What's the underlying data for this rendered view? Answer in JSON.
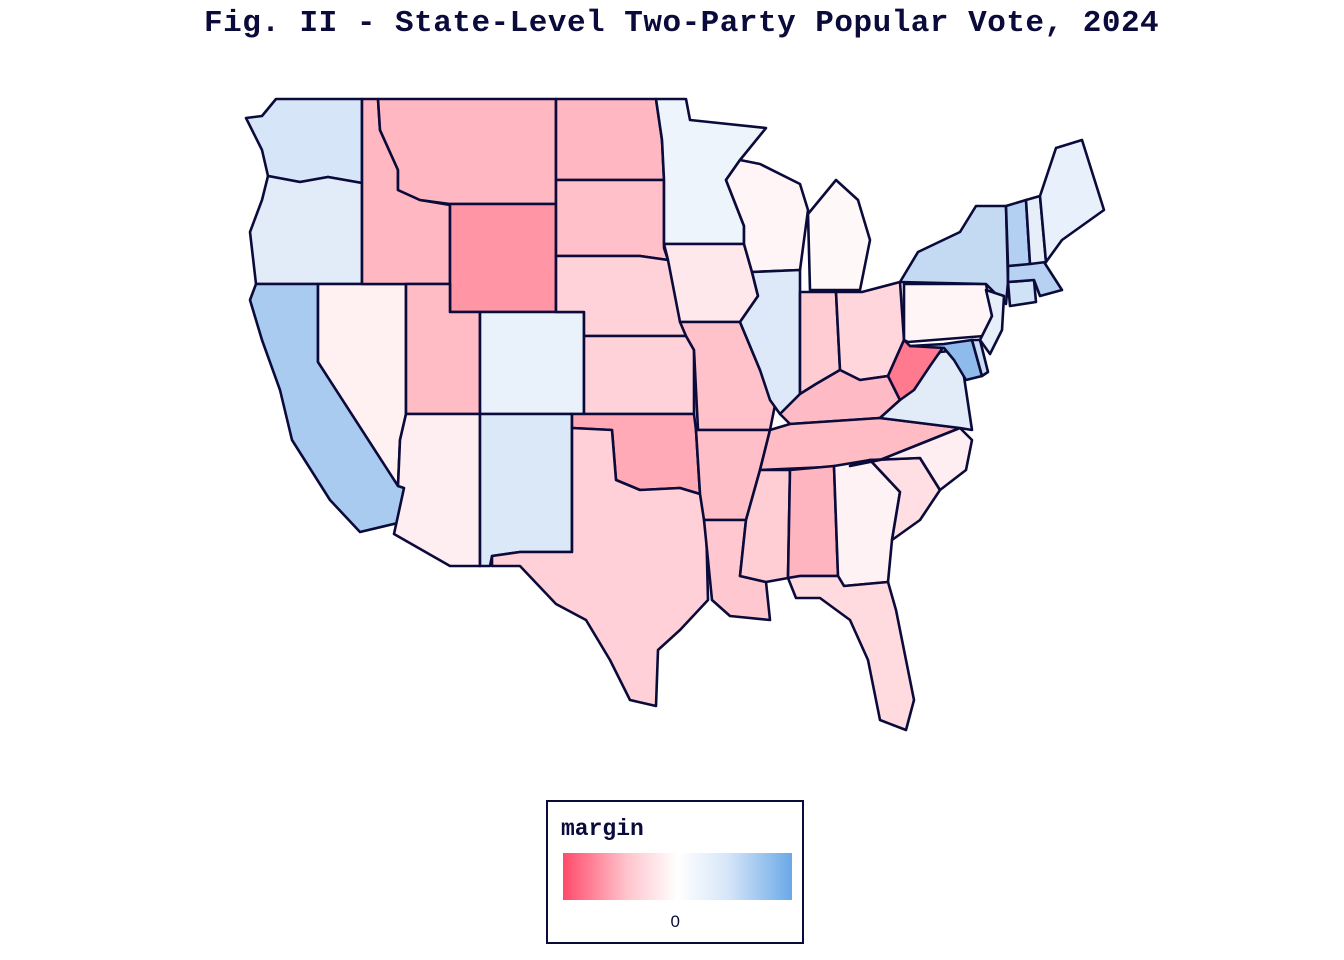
{
  "title": "Fig. II - State-Level Two-Party Popular Vote, 2024",
  "legend": {
    "title": "margin",
    "zero_label": "0"
  },
  "colors": {
    "border": "#0b0b3b",
    "scale_negative": "#ff4a6a",
    "scale_mid": "#ffffff",
    "scale_positive": "#6aa9e8"
  },
  "states": [
    {
      "name": "WA",
      "fill": "#d6e6f8"
    },
    {
      "name": "OR",
      "fill": "#e2ecf9"
    },
    {
      "name": "CA",
      "fill": "#a9cbef"
    },
    {
      "name": "NV",
      "fill": "#fff0f2"
    },
    {
      "name": "ID",
      "fill": "#ffb8c2"
    },
    {
      "name": "MT",
      "fill": "#ffb8c2"
    },
    {
      "name": "WY",
      "fill": "#ff95a5"
    },
    {
      "name": "UT",
      "fill": "#ffbcc5"
    },
    {
      "name": "AZ",
      "fill": "#ffeef1"
    },
    {
      "name": "CO",
      "fill": "#e9f1fb"
    },
    {
      "name": "NM",
      "fill": "#dbe8f8"
    },
    {
      "name": "ND",
      "fill": "#ffb8c2"
    },
    {
      "name": "SD",
      "fill": "#ffc0c9"
    },
    {
      "name": "NE",
      "fill": "#ffd2d9"
    },
    {
      "name": "KS",
      "fill": "#ffd2d9"
    },
    {
      "name": "OK",
      "fill": "#ffaab6"
    },
    {
      "name": "TX",
      "fill": "#ffd0d7"
    },
    {
      "name": "MN",
      "fill": "#eef4fc"
    },
    {
      "name": "IA",
      "fill": "#ffe8ec"
    },
    {
      "name": "MO",
      "fill": "#ffc2cb"
    },
    {
      "name": "AR",
      "fill": "#ffbfc8"
    },
    {
      "name": "LA",
      "fill": "#ffc8d0"
    },
    {
      "name": "WI",
      "fill": "#fff5f6"
    },
    {
      "name": "IL",
      "fill": "#dde9f8"
    },
    {
      "name": "MI",
      "fill": "#fff8f8"
    },
    {
      "name": "IN",
      "fill": "#ffccd3"
    },
    {
      "name": "OH",
      "fill": "#ffd6dc"
    },
    {
      "name": "KY",
      "fill": "#ffbbc5"
    },
    {
      "name": "TN",
      "fill": "#ffbcc5"
    },
    {
      "name": "MS",
      "fill": "#ffcdd4"
    },
    {
      "name": "AL",
      "fill": "#ffb5c0"
    },
    {
      "name": "GA",
      "fill": "#fff2f4"
    },
    {
      "name": "FL",
      "fill": "#ffdbe0"
    },
    {
      "name": "SC",
      "fill": "#ffdfe3"
    },
    {
      "name": "NC",
      "fill": "#ffeef1"
    },
    {
      "name": "VA",
      "fill": "#e2ecf9"
    },
    {
      "name": "WV",
      "fill": "#ff7a8f"
    },
    {
      "name": "PA",
      "fill": "#fff5f6"
    },
    {
      "name": "NY",
      "fill": "#c4daf3"
    },
    {
      "name": "NJ",
      "fill": "#e6eefa"
    },
    {
      "name": "MD",
      "fill": "#8fbbec"
    },
    {
      "name": "DE",
      "fill": "#c8dcf3"
    },
    {
      "name": "CT",
      "fill": "#d0e2f6"
    },
    {
      "name": "MA",
      "fill": "#b6d1f1"
    },
    {
      "name": "VT",
      "fill": "#b3cff1"
    },
    {
      "name": "NH",
      "fill": "#e6eefa"
    },
    {
      "name": "ME",
      "fill": "#e8f0fb"
    }
  ]
}
